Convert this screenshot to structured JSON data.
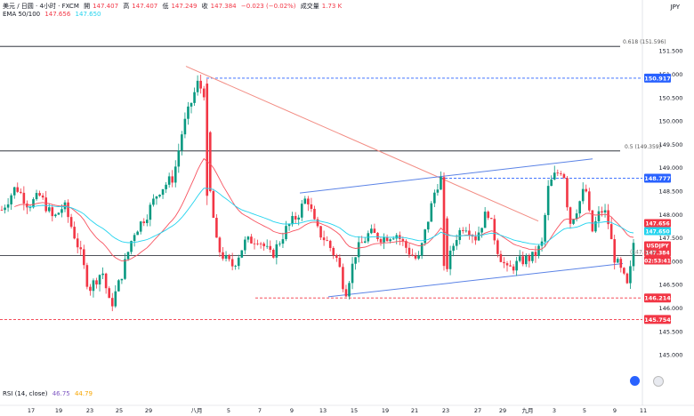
{
  "header": {
    "symbol": "美元 / 日圆 · 4小时 · FXCM",
    "open_label": "開",
    "open": "147.407",
    "high_label": "高",
    "high": "147.407",
    "low_label": "低",
    "low": "147.249",
    "close_label": "收",
    "close": "147.384",
    "change": "−0.023 (−0.02%)",
    "volume_label": "成交量",
    "volume": "1.73 K",
    "ema_label": "EMA 50/100",
    "ema50": "147.656",
    "ema100": "147.650"
  },
  "currency": "JPY",
  "rsi": {
    "label": "RSI (14, close)",
    "v1": "46.75",
    "v2": "44.79"
  },
  "colors": {
    "up": "#089981",
    "down": "#f23645",
    "ema50": "#f7525f",
    "ema100": "#22d3ee",
    "trend": "#5b83e6",
    "hline": "#131722",
    "support": "#f23645",
    "resistance": "#2962ff"
  },
  "chart_data": {
    "type": "candlestick",
    "ylim": [
      144.45,
      152.17
    ],
    "y_ticks": [
      "151.500",
      "151.000",
      "150.500",
      "150.000",
      "149.500",
      "149.000",
      "148.500",
      "148.000",
      "147.500",
      "147.000",
      "146.500",
      "146.000",
      "145.500",
      "145.000"
    ],
    "x_ticks": [
      "17",
      "19",
      "23",
      "25",
      "29",
      "八月",
      "5",
      "7",
      "9",
      "13",
      "15",
      "19",
      "21",
      "23",
      "27",
      "29",
      "九月",
      "3",
      "5",
      "9",
      "11"
    ],
    "series": [
      {
        "name": "EMA 50",
        "kind": "line"
      },
      {
        "name": "EMA 100",
        "kind": "line"
      }
    ],
    "price_marks": [
      {
        "label": "0.618 (151.596)",
        "value": 151.596,
        "style": "line"
      },
      {
        "label": "0.5 (149.359)",
        "value": 149.359,
        "style": "line"
      },
      {
        "label": "150.917",
        "value": 150.917,
        "style": "dashed-blue"
      },
      {
        "label": "148.777",
        "value": 148.777,
        "style": "dashed-blue"
      },
      {
        "label": "146.214",
        "value": 146.214,
        "style": "dashed-red"
      },
      {
        "label": "145.754",
        "value": 145.754,
        "style": "dashed-red"
      }
    ],
    "axis_badges": [
      {
        "label": "147.656",
        "value": 147.656,
        "color": "#f23645"
      },
      {
        "label": "147.650",
        "value": 147.65,
        "color": "#22d3ee"
      },
      {
        "label": "USDJPY",
        "value": 147.384,
        "color": "#f23645"
      },
      {
        "label": "147.384",
        "value": 147.384,
        "color": "#f23645"
      },
      {
        "label": "02:53:41",
        "value": 147.384,
        "color": "#f23645"
      }
    ],
    "right_label": "(147.121)"
  }
}
